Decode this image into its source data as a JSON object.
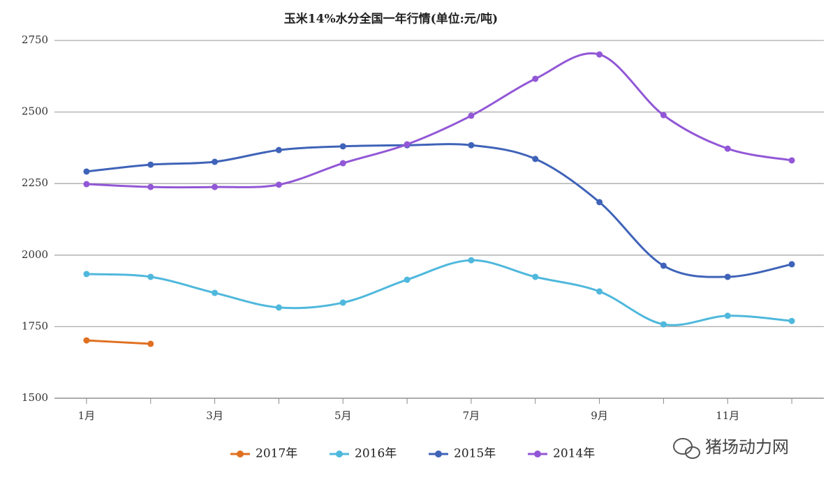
{
  "chart_data": {
    "type": "line",
    "title": "玉米14%水分全国一年行情(单位:元/吨)",
    "categories": [
      "1月",
      null,
      "3月",
      null,
      "5月",
      null,
      "7月",
      null,
      "9月",
      null,
      "11月",
      null
    ],
    "series": [
      {
        "name": "2017年",
        "color": "#e07020",
        "values": [
          1702,
          1690,
          null,
          null,
          null,
          null,
          null,
          null,
          null,
          null,
          null,
          null
        ]
      },
      {
        "name": "2016年",
        "color": "#4fb8dc",
        "values": [
          1934,
          1924,
          1868,
          1817,
          1834,
          1914,
          1982,
          1924,
          1873,
          1758,
          1788,
          1770
        ]
      },
      {
        "name": "2015年",
        "color": "#3f63b8",
        "values": [
          2292,
          2316,
          2326,
          2367,
          2380,
          2384,
          2384,
          2336,
          2185,
          1963,
          1924,
          1968
        ]
      },
      {
        "name": "2014年",
        "color": "#9257d6",
        "values": [
          2248,
          2238,
          2238,
          2246,
          2321,
          2387,
          2487,
          2616,
          2701,
          2489,
          2372,
          2331
        ]
      }
    ],
    "ylim": [
      1500,
      2750
    ],
    "yticks": [
      1500,
      1750,
      2000,
      2250,
      2500,
      2750
    ],
    "grid": true,
    "watermark": "猪场动力网"
  }
}
